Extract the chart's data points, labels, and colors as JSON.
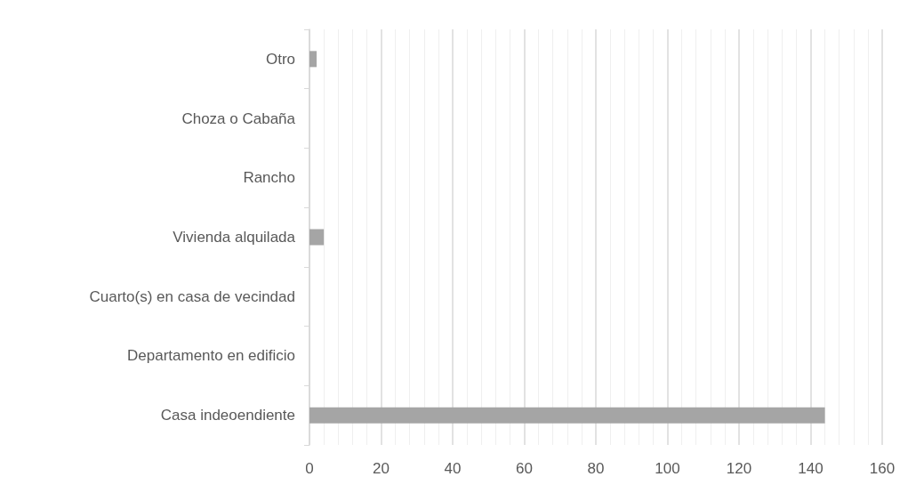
{
  "chart_data": {
    "type": "bar",
    "orientation": "horizontal",
    "categories": [
      "Otro",
      "Choza o Cabaña",
      "Rancho",
      "Vivienda alquilada",
      "Cuarto(s) en casa de vecindad",
      "Departamento en edificio",
      "Casa indeoendiente"
    ],
    "values": [
      2,
      0,
      0,
      4,
      0,
      0,
      144
    ],
    "color": "#a5a5a5",
    "xlim": [
      0,
      160
    ],
    "xticks": [
      0,
      20,
      40,
      60,
      80,
      100,
      120,
      140,
      160
    ],
    "grid": "x"
  }
}
